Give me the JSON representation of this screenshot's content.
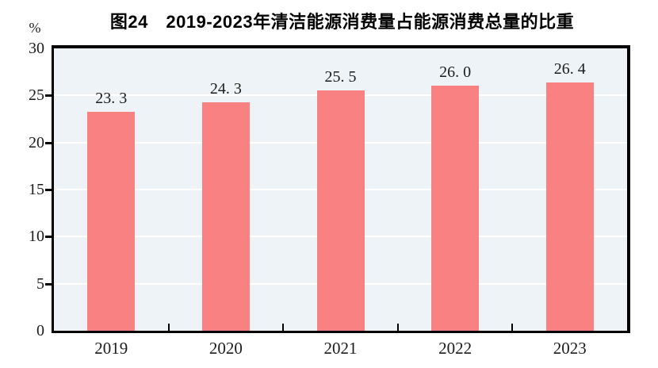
{
  "title": "图24　2019-2023年清洁能源消费量占能源消费总量的比重",
  "y_unit": "%",
  "colors": {
    "bar": "#fa8181",
    "plot_background": "#edf3f6",
    "gridline": "#ffffff",
    "axis": "#000000",
    "text": "#1c1c1c"
  },
  "chart_data": {
    "type": "bar",
    "title": "图24　2019-2023年清洁能源消费量占能源消费总量的比重",
    "categories": [
      "2019",
      "2020",
      "2021",
      "2022",
      "2023"
    ],
    "values": [
      23.3,
      24.3,
      25.5,
      26.0,
      26.4
    ],
    "value_labels": [
      "23. 3",
      "24. 3",
      "25. 5",
      "26. 0",
      "26. 4"
    ],
    "xlabel": "",
    "ylabel": "%",
    "ylim": [
      0,
      30
    ],
    "yticks": [
      0,
      5,
      10,
      15,
      20,
      25,
      30
    ],
    "ytick_labels": [
      "0",
      "5",
      "10",
      "15",
      "20",
      "25",
      "30"
    ],
    "grid": "horizontal white gridlines at each ytick",
    "legend": "none"
  }
}
